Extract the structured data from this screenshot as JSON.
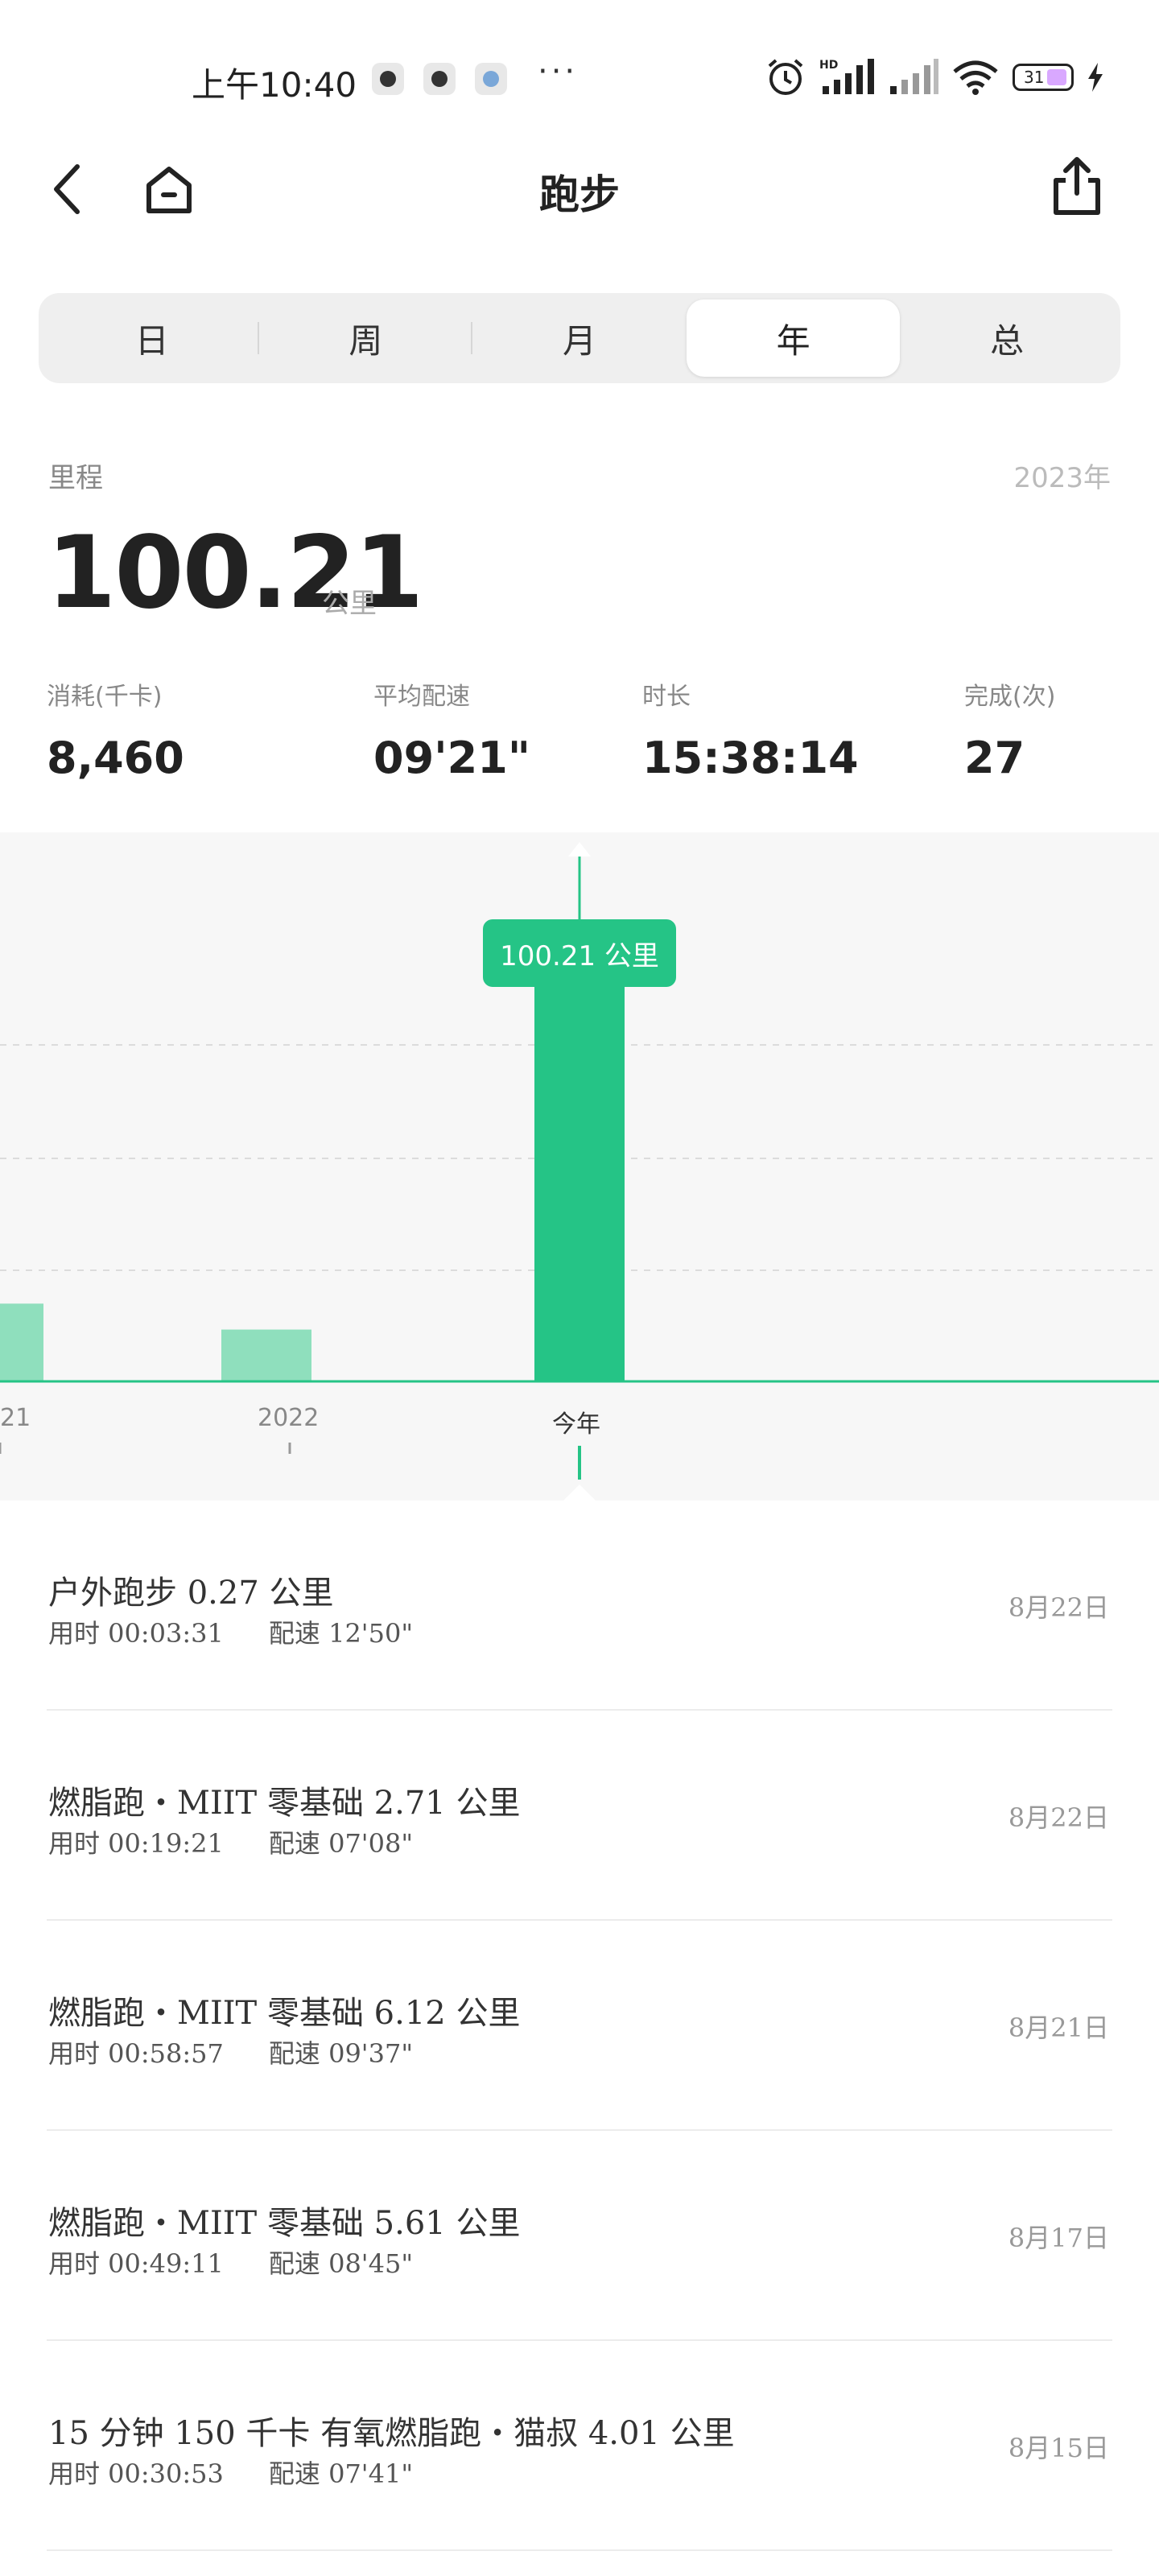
{
  "status_bar": {
    "time": "上午10:40",
    "more": "···",
    "battery": "31"
  },
  "header": {
    "title": "跑步"
  },
  "tabs": [
    {
      "label": "日",
      "active": false
    },
    {
      "label": "周",
      "active": false
    },
    {
      "label": "月",
      "active": false
    },
    {
      "label": "年",
      "active": true
    },
    {
      "label": "总",
      "active": false
    }
  ],
  "summary": {
    "distance_label": "里程",
    "year": "2023年",
    "distance_value": "100.21",
    "distance_unit": "公里",
    "metrics": [
      {
        "label": "消耗(千卡)",
        "value": "8,460"
      },
      {
        "label": "平均配速",
        "value": "09'21\""
      },
      {
        "label": "时长",
        "value": "15:38:14"
      },
      {
        "label": "完成(次)",
        "value": "27"
      }
    ]
  },
  "chart_data": {
    "type": "bar",
    "categories": [
      "21",
      "2022",
      "今年"
    ],
    "values": [
      10.5,
      7,
      59
    ],
    "selected_index": 2,
    "tooltip": "100.21 公里",
    "bar_color": "#25c486",
    "bar_color_faded": "#8fdfbd",
    "grid": true
  },
  "records": [
    {
      "title": "户外跑步 0.27 公里",
      "duration": "用时 00:03:31",
      "pace": "配速 12'50\"",
      "date": "8月22日"
    },
    {
      "title": "燃脂跑・MIIT 零基础 2.71 公里",
      "duration": "用时 00:19:21",
      "pace": "配速 07'08\"",
      "date": "8月22日"
    },
    {
      "title": "燃脂跑・MIIT 零基础 6.12 公里",
      "duration": "用时 00:58:57",
      "pace": "配速 09'37\"",
      "date": "8月21日"
    },
    {
      "title": "燃脂跑・MIIT 零基础 5.61 公里",
      "duration": "用时 00:49:11",
      "pace": "配速 08'45\"",
      "date": "8月17日"
    },
    {
      "title": "15 分钟 150 千卡 有氧燃脂跑・猫叔 4.01 公里",
      "duration": "用时 00:30:53",
      "pace": "配速 07'41\"",
      "date": "8月15日"
    }
  ]
}
